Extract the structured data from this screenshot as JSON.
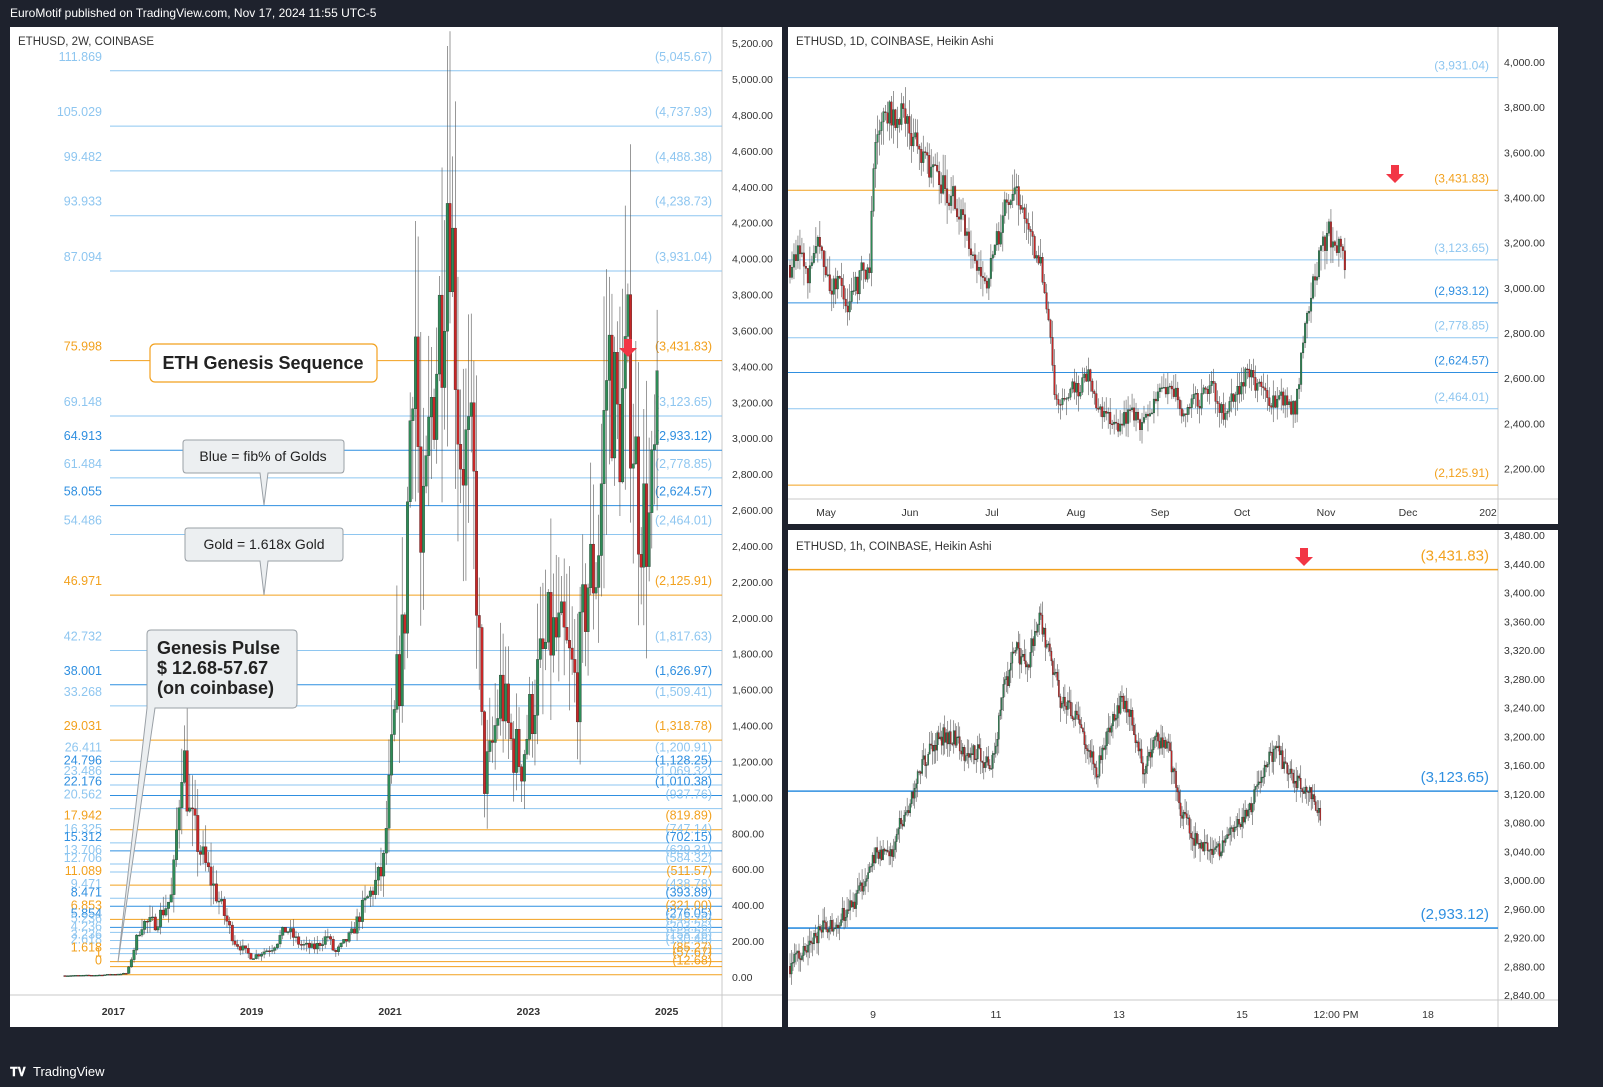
{
  "header": {
    "published": "EuroMotif published on TradingView.com, Nov 17, 2024 11:55 UTC-5"
  },
  "footer": {
    "brand": "TradingView",
    "logo": "tradingview-logo-icon"
  },
  "colors": {
    "gold": "#f2a11e",
    "blue_light": "#8ec6f0",
    "blue_dark": "#2f8fe0",
    "candle_up": "#2e8b57",
    "candle_down": "#c62828",
    "marker": "#f23645"
  },
  "chart_data": [
    {
      "type": "candlestick",
      "title": "ETHUSD, 2W, COINBASE",
      "ylim": [
        0,
        5045.67
      ],
      "y_ticks": [
        "0.00",
        "200.00",
        "400.00",
        "600.00",
        "800.00",
        "1,000.00",
        "1,200.00",
        "1,400.00",
        "1,600.00",
        "1,800.00",
        "2,000.00",
        "2,200.00",
        "2,400.00",
        "2,600.00",
        "2,800.00",
        "3,000.00",
        "3,200.00",
        "3,400.00",
        "3,600.00",
        "3,800.00",
        "4,000.00",
        "4,200.00",
        "4,400.00",
        "4,600.00",
        "4,800.00",
        "5,000.00",
        "5,200.00"
      ],
      "x_ticks": [
        "2017",
        "2019",
        "2021",
        "2023",
        "2025"
      ],
      "x_range": [
        2016.3,
        2025.8
      ],
      "levels": [
        {
          "ratio": "111.869",
          "price_label": "(5,045.67)",
          "price": 5045.67,
          "color": "blue_light"
        },
        {
          "ratio": "105.029",
          "price_label": "(4,737.93)",
          "price": 4737.93,
          "color": "blue_light"
        },
        {
          "ratio": "99.482",
          "price_label": "(4,488.38)",
          "price": 4488.38,
          "color": "blue_light"
        },
        {
          "ratio": "93.933",
          "price_label": "(4,238.73)",
          "price": 4238.73,
          "color": "blue_light"
        },
        {
          "ratio": "87.094",
          "price_label": "(3,931.04)",
          "price": 3931.04,
          "color": "blue_light"
        },
        {
          "ratio": "75.998",
          "price_label": "(3,431.83)",
          "price": 3431.83,
          "color": "gold"
        },
        {
          "ratio": "69.148",
          "price_label": "(3,123.65)",
          "price": 3123.65,
          "color": "blue_light"
        },
        {
          "ratio": "64.913",
          "price_label": "(2,933.12)",
          "price": 2933.12,
          "color": "blue_dark"
        },
        {
          "ratio": "61.484",
          "price_label": "(2,778.85)",
          "price": 2778.85,
          "color": "blue_light"
        },
        {
          "ratio": "58.055",
          "price_label": "(2,624.57)",
          "price": 2624.57,
          "color": "blue_dark"
        },
        {
          "ratio": "54.486",
          "price_label": "(2,464.01)",
          "price": 2464.01,
          "color": "blue_light"
        },
        {
          "ratio": "46.971",
          "price_label": "(2,125.91)",
          "price": 2125.91,
          "color": "gold"
        },
        {
          "ratio": "42.732",
          "price_label": "(1,817.63)",
          "price": 1817.63,
          "color": "blue_light"
        },
        {
          "ratio": "38.001",
          "price_label": "(1,626.97)",
          "price": 1626.97,
          "color": "blue_dark"
        },
        {
          "ratio": "33.268",
          "price_label": "(1,509.41)",
          "price": 1509.41,
          "color": "blue_light"
        },
        {
          "ratio": "29.031",
          "price_label": "(1,318.78)",
          "price": 1318.78,
          "color": "gold"
        },
        {
          "ratio": "26.411",
          "price_label": "(1,200.91)",
          "price": 1200.91,
          "color": "blue_light"
        },
        {
          "ratio": "24.796",
          "price_label": "(1,128.25)",
          "price": 1128.25,
          "color": "blue_dark"
        },
        {
          "ratio": "23.486",
          "price_label": "(1,069.32)",
          "price": 1069.32,
          "color": "blue_light"
        },
        {
          "ratio": "22.176",
          "price_label": "(1,010.38)",
          "price": 1010.38,
          "color": "blue_dark"
        },
        {
          "ratio": "20.562",
          "price_label": "(937.76)",
          "price": 937.76,
          "color": "blue_light"
        },
        {
          "ratio": "17.942",
          "price_label": "(819.89)",
          "price": 819.89,
          "color": "gold"
        },
        {
          "ratio": "16.325",
          "price_label": "(747.14)",
          "price": 747.14,
          "color": "blue_light"
        },
        {
          "ratio": "15.312",
          "price_label": "(702.15)",
          "price": 702.15,
          "color": "blue_dark"
        },
        {
          "ratio": "13.706",
          "price_label": "(629.31)",
          "price": 629.31,
          "color": "blue_light"
        },
        {
          "ratio": "12.706",
          "price_label": "(584.32)",
          "price": 584.32,
          "color": "blue_light"
        },
        {
          "ratio": "11.089",
          "price_label": "(511.57)",
          "price": 511.57,
          "color": "gold"
        },
        {
          "ratio": "9.471",
          "price_label": "(438.78)",
          "price": 438.78,
          "color": "blue_light"
        },
        {
          "ratio": "8.471",
          "price_label": "(393.89)",
          "price": 393.89,
          "color": "blue_dark"
        },
        {
          "ratio": "6.853",
          "price_label": "(321.00)",
          "price": 321.0,
          "color": "gold"
        },
        {
          "ratio": "5.854",
          "price_label": "(276.05)",
          "price": 276.05,
          "color": "blue_dark"
        },
        {
          "ratio": "5.236",
          "price_label": "(248.26)",
          "price": 248.26,
          "color": "blue_light"
        },
        {
          "ratio": "4.236",
          "price_label": "(203.26)",
          "price": 203.26,
          "color": "blue_light"
        },
        {
          "ratio": "3.236",
          "price_label": "(158.26)",
          "price": 158.26,
          "color": "blue_light"
        },
        {
          "ratio": "2.618",
          "price_label": "(130.46)",
          "price": 130.46,
          "color": "blue_light"
        },
        {
          "ratio": "1.618",
          "price_label": "(85.27)",
          "price": 85.27,
          "color": "gold"
        },
        {
          "ratio": "1",
          "price_label": "(57.67)",
          "price": 57.67,
          "color": "gold"
        },
        {
          "ratio": "0",
          "price_label": "(12.68)",
          "price": 12.68,
          "color": "gold"
        }
      ],
      "annotations": [
        {
          "text": "ETH Genesis Sequence"
        },
        {
          "text": "Blue = fib% of Golds"
        },
        {
          "text": "Gold = 1.618x Gold"
        },
        {
          "lines": [
            "Genesis Pulse",
            "$ 12.68-57.67",
            "(on coinbase)"
          ]
        }
      ],
      "price_path": [
        [
          2016.3,
          8
        ],
        [
          2016.8,
          11
        ],
        [
          2017.2,
          20
        ],
        [
          2017.4,
          300
        ],
        [
          2017.6,
          300
        ],
        [
          2017.85,
          450
        ],
        [
          2018.0,
          1300
        ],
        [
          2018.1,
          900
        ],
        [
          2018.3,
          650
        ],
        [
          2018.5,
          450
        ],
        [
          2018.75,
          200
        ],
        [
          2019.0,
          110
        ],
        [
          2019.3,
          165
        ],
        [
          2019.5,
          270
        ],
        [
          2019.7,
          180
        ],
        [
          2019.9,
          160
        ],
        [
          2020.1,
          230
        ],
        [
          2020.2,
          130
        ],
        [
          2020.45,
          240
        ],
        [
          2020.6,
          380
        ],
        [
          2020.9,
          600
        ],
        [
          2021.1,
          1600
        ],
        [
          2021.2,
          1900
        ],
        [
          2021.35,
          3900
        ],
        [
          2021.45,
          2200
        ],
        [
          2021.6,
          3200
        ],
        [
          2021.75,
          3800
        ],
        [
          2021.85,
          4600
        ],
        [
          2022.0,
          3000
        ],
        [
          2022.2,
          2800
        ],
        [
          2022.35,
          1100
        ],
        [
          2022.45,
          1200
        ],
        [
          2022.6,
          1600
        ],
        [
          2022.75,
          1300
        ],
        [
          2022.9,
          1200
        ],
        [
          2023.1,
          1600
        ],
        [
          2023.3,
          1900
        ],
        [
          2023.5,
          1850
        ],
        [
          2023.7,
          1600
        ],
        [
          2023.85,
          2200
        ],
        [
          2024.0,
          2300
        ],
        [
          2024.15,
          3500
        ],
        [
          2024.3,
          3000
        ],
        [
          2024.45,
          3400
        ],
        [
          2024.6,
          2600
        ],
        [
          2024.75,
          2500
        ],
        [
          2024.88,
          3050
        ]
      ]
    },
    {
      "type": "candlestick",
      "title": "ETHUSD, 1D, COINBASE, Heikin Ashi",
      "ylim": [
        2100,
        4000
      ],
      "y_ticks": [
        "2,200.00",
        "2,400.00",
        "2,600.00",
        "2,800.00",
        "3,000.00",
        "3,200.00",
        "3,400.00",
        "3,600.00",
        "3,800.00",
        "4,000.00"
      ],
      "x_ticks": [
        "May",
        "Jun",
        "Jul",
        "Aug",
        "Sep",
        "Oct",
        "Nov",
        "Dec",
        "202"
      ],
      "levels": [
        {
          "price_label": "(3,931.04)",
          "price": 3931.04,
          "color": "blue_light"
        },
        {
          "price_label": "(3,431.83)",
          "price": 3431.83,
          "color": "gold"
        },
        {
          "price_label": "(3,123.65)",
          "price": 3123.65,
          "color": "blue_light"
        },
        {
          "price_label": "(2,933.12)",
          "price": 2933.12,
          "color": "blue_dark"
        },
        {
          "price_label": "(2,778.85)",
          "price": 2778.85,
          "color": "blue_light"
        },
        {
          "price_label": "(2,624.57)",
          "price": 2624.57,
          "color": "blue_dark"
        },
        {
          "price_label": "(2,464.01)",
          "price": 2464.01,
          "color": "blue_light"
        },
        {
          "price_label": "(2,125.91)",
          "price": 2125.91,
          "color": "gold"
        }
      ],
      "price_path": [
        [
          0,
          3100
        ],
        [
          5,
          3150
        ],
        [
          10,
          3050
        ],
        [
          15,
          3200
        ],
        [
          20,
          3000
        ],
        [
          25,
          3000
        ],
        [
          28,
          2900
        ],
        [
          31,
          2950
        ],
        [
          35,
          3050
        ],
        [
          40,
          3100
        ],
        [
          43,
          3700
        ],
        [
          48,
          3800
        ],
        [
          52,
          3750
        ],
        [
          57,
          3800
        ],
        [
          62,
          3650
        ],
        [
          67,
          3550
        ],
        [
          72,
          3500
        ],
        [
          77,
          3450
        ],
        [
          82,
          3400
        ],
        [
          87,
          3300
        ],
        [
          92,
          3150
        ],
        [
          97,
          3000
        ],
        [
          102,
          3100
        ],
        [
          107,
          3350
        ],
        [
          112,
          3450
        ],
        [
          116,
          3350
        ],
        [
          121,
          3200
        ],
        [
          126,
          3100
        ],
        [
          130,
          2900
        ],
        [
          133,
          2500
        ],
        [
          136,
          2500
        ],
        [
          140,
          2550
        ],
        [
          145,
          2550
        ],
        [
          150,
          2650
        ],
        [
          154,
          2450
        ],
        [
          160,
          2450
        ],
        [
          165,
          2350
        ],
        [
          170,
          2450
        ],
        [
          175,
          2400
        ],
        [
          180,
          2450
        ],
        [
          186,
          2550
        ],
        [
          192,
          2550
        ],
        [
          198,
          2450
        ],
        [
          205,
          2500
        ],
        [
          212,
          2550
        ],
        [
          218,
          2450
        ],
        [
          225,
          2550
        ],
        [
          231,
          2650
        ],
        [
          236,
          2550
        ],
        [
          242,
          2500
        ],
        [
          248,
          2500
        ],
        [
          254,
          2450
        ],
        [
          260,
          2900
        ],
        [
          265,
          3100
        ],
        [
          270,
          3250
        ],
        [
          275,
          3200
        ],
        [
          280,
          3100
        ]
      ],
      "candle_count": 280,
      "total_slots": 355
    },
    {
      "type": "candlestick",
      "title": "ETHUSD, 1h, COINBASE, Heikin Ashi",
      "ylim": [
        2840,
        3480
      ],
      "y_ticks": [
        "2,840.00",
        "2,880.00",
        "2,920.00",
        "2,960.00",
        "3,000.00",
        "3,040.00",
        "3,080.00",
        "3,120.00",
        "3,160.00",
        "3,200.00",
        "3,240.00",
        "3,280.00",
        "3,320.00",
        "3,360.00",
        "3,400.00",
        "3,440.00",
        "3,480.00"
      ],
      "x_ticks": [
        "9",
        "11",
        "13",
        "15",
        "12:00 PM",
        "18"
      ],
      "levels": [
        {
          "price_label": "(3,431.83)",
          "price": 3431.83,
          "color": "gold"
        },
        {
          "price_label": "(3,123.65)",
          "price": 3123.65,
          "color": "blue_dark"
        },
        {
          "price_label": "(2,933.12)",
          "price": 2933.12,
          "color": "blue_dark"
        }
      ],
      "price_path": [
        [
          0,
          2880
        ],
        [
          10,
          2900
        ],
        [
          20,
          2930
        ],
        [
          30,
          2940
        ],
        [
          40,
          2960
        ],
        [
          50,
          3000
        ],
        [
          58,
          3040
        ],
        [
          66,
          3030
        ],
        [
          74,
          3080
        ],
        [
          82,
          3120
        ],
        [
          90,
          3170
        ],
        [
          100,
          3200
        ],
        [
          110,
          3200
        ],
        [
          118,
          3170
        ],
        [
          126,
          3180
        ],
        [
          134,
          3150
        ],
        [
          142,
          3260
        ],
        [
          150,
          3320
        ],
        [
          158,
          3300
        ],
        [
          166,
          3370
        ],
        [
          172,
          3320
        ],
        [
          180,
          3250
        ],
        [
          188,
          3230
        ],
        [
          196,
          3200
        ],
        [
          204,
          3150
        ],
        [
          212,
          3200
        ],
        [
          220,
          3250
        ],
        [
          228,
          3220
        ],
        [
          236,
          3150
        ],
        [
          244,
          3200
        ],
        [
          252,
          3180
        ],
        [
          260,
          3100
        ],
        [
          268,
          3060
        ],
        [
          276,
          3050
        ],
        [
          284,
          3040
        ],
        [
          292,
          3060
        ],
        [
          300,
          3080
        ],
        [
          308,
          3110
        ],
        [
          316,
          3160
        ],
        [
          324,
          3180
        ],
        [
          332,
          3150
        ],
        [
          340,
          3130
        ],
        [
          348,
          3120
        ],
        [
          354,
          3080
        ]
      ],
      "candle_count": 354,
      "total_slots": 470
    }
  ]
}
